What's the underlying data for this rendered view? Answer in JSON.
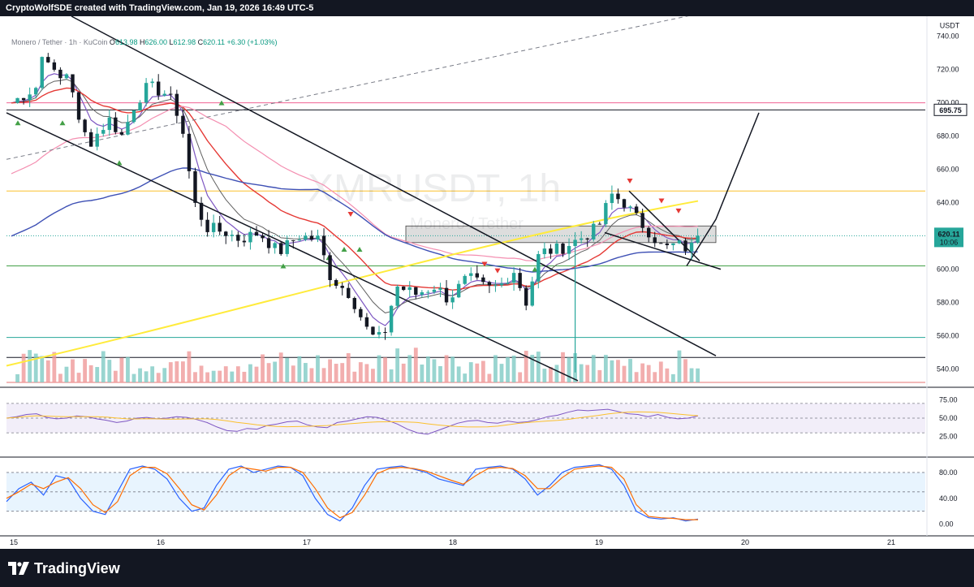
{
  "header": {
    "credit": "CryptoWolfSDE created with TradingView.com, Jan 19, 2026 16:49 UTC-5"
  },
  "legend": {
    "symbol": "Monero / Tether · 1h · KuCoin",
    "open_label": "O",
    "open": "613.98",
    "high_label": "H",
    "high": "626.00",
    "low_label": "L",
    "low": "612.98",
    "close_label": "C",
    "close": "620.11",
    "change": "+6.30 (+1.03%)"
  },
  "watermark": {
    "line1": "XMRUSDT, 1h",
    "line2": "Monero / Tether"
  },
  "footer": {
    "brand": "TradingView"
  },
  "colors": {
    "up": "#26a69a",
    "down": "#131722",
    "ema_fast": "#7e57c2",
    "ema_slow": "#e53935",
    "ema_pink": "#f48fb1",
    "ema_blue": "#3f51b5",
    "ema_yellow": "#ffeb3b",
    "rsi": "#7e57c2",
    "stoch_k": "#2962ff",
    "stoch_d": "#ff6d00"
  },
  "chart_data": {
    "type": "candlestick",
    "currency_label": "USDT",
    "y_ticks": [
      540,
      560,
      580,
      600,
      620,
      640,
      660,
      680,
      700,
      720,
      740
    ],
    "ylim": [
      532,
      752
    ],
    "x_ticks": [
      "15",
      "16",
      "17",
      "18",
      "19",
      "20",
      "21"
    ],
    "last_price": "620.11",
    "countdown": "10:06",
    "marked_level": "695.75",
    "horizontal_levels": [
      {
        "value": 700,
        "color": "#f06292"
      },
      {
        "value": 695.75,
        "color": "#131722"
      },
      {
        "value": 647,
        "color": "#fbc02d"
      },
      {
        "value": 602,
        "color": "#43a047"
      },
      {
        "value": 559,
        "color": "#26a69a"
      },
      {
        "value": 547,
        "color": "#131722"
      },
      {
        "value": 532,
        "color": "#e57373"
      }
    ],
    "rsi": {
      "ticks": [
        75,
        50,
        25
      ],
      "ylim": [
        18,
        82
      ],
      "values": [
        50,
        52,
        55,
        56,
        51,
        49,
        50,
        53,
        52,
        49,
        47,
        44,
        46,
        50,
        51,
        49,
        50,
        52,
        51,
        48,
        44,
        38,
        33,
        32,
        36,
        35,
        40,
        42,
        45,
        46,
        41,
        38,
        37,
        44,
        46,
        49,
        52,
        51,
        47,
        42,
        35,
        30,
        28,
        33,
        38,
        43,
        46,
        47,
        44,
        43,
        46,
        44,
        45,
        48,
        52,
        54,
        58,
        61,
        60,
        61,
        62,
        59,
        56,
        55,
        52,
        55,
        51,
        49,
        50,
        53
      ]
    },
    "stoch": {
      "ticks": [
        80,
        40,
        0
      ],
      "ylim": [
        -8,
        100
      ],
      "k": [
        35,
        55,
        65,
        45,
        75,
        70,
        40,
        20,
        15,
        50,
        85,
        90,
        85,
        70,
        40,
        20,
        25,
        60,
        85,
        90,
        80,
        85,
        90,
        88,
        75,
        40,
        15,
        5,
        25,
        60,
        85,
        88,
        90,
        85,
        80,
        70,
        65,
        60,
        85,
        88,
        90,
        85,
        70,
        45,
        60,
        80,
        88,
        90,
        92,
        85,
        60,
        20,
        10,
        8,
        10,
        5,
        8
      ],
      "d": [
        40,
        50,
        62,
        55,
        65,
        72,
        55,
        30,
        18,
        35,
        75,
        88,
        88,
        78,
        55,
        30,
        22,
        45,
        75,
        88,
        85,
        82,
        88,
        88,
        80,
        55,
        25,
        10,
        18,
        45,
        78,
        86,
        88,
        86,
        82,
        75,
        68,
        62,
        75,
        86,
        88,
        86,
        75,
        55,
        55,
        72,
        85,
        88,
        90,
        88,
        70,
        30,
        12,
        10,
        9,
        7,
        7
      ]
    }
  }
}
